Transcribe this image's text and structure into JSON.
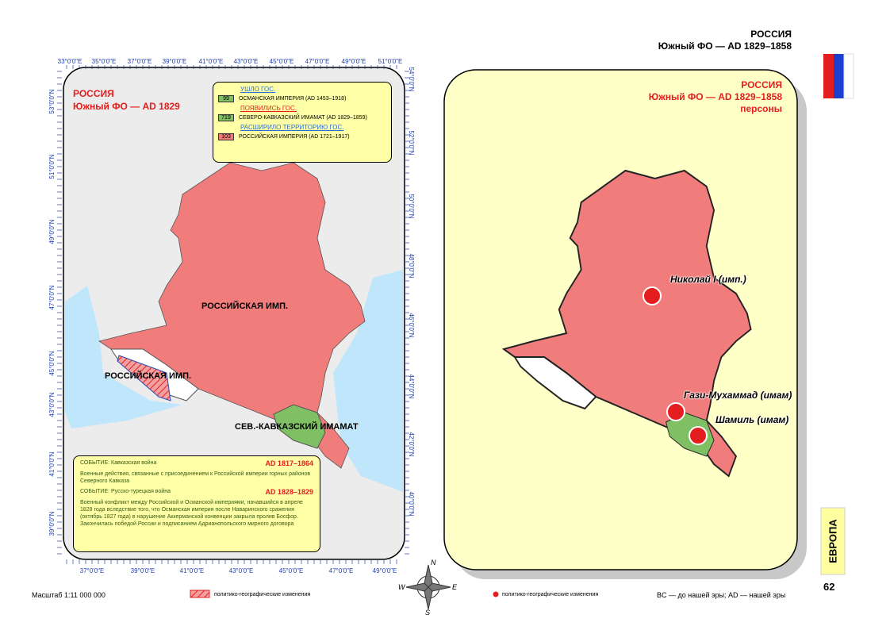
{
  "header": {
    "title": "РОССИЯ",
    "subtitle": "Южный ФО — AD 1829–1858"
  },
  "left_map": {
    "title": "РОССИЯ",
    "subtitle": "Южный ФО — AD 1829",
    "legend": {
      "left_heading": "УШЛО ГОС.",
      "left_items": [
        {
          "code": "99",
          "name": "ОСМАНСКАЯ ИМПЕРИЯ (AD 1453–1918)"
        }
      ],
      "appeared_heading": "ПОЯВИЛИСЬ ГОС.",
      "appeared_items": [
        {
          "code": "719",
          "name": "СЕВЕРО-КАВКАЗСКИЙ ИМАМАТ (AD 1829–1859)"
        }
      ],
      "expanded_heading": "РАСШИРИЛО ТЕРРИТОРИЮ ГОС.",
      "expanded_items": [
        {
          "code": "103",
          "name": "РОССИЙСКАЯ ИМПЕРИЯ (AD 1721–1917)"
        }
      ]
    },
    "labels": [
      "РОССИЙСКАЯ ИМП.",
      "РОССИЙСКАЯ ИМП.",
      "СЕВ.-КАВКАЗСКИЙ ИМАМАТ"
    ],
    "top_longitudes": [
      "33°0'0\"E",
      "35°0'0\"E",
      "37°0'0\"E",
      "39°0'0\"E",
      "41°0'0\"E",
      "43°0'0\"E",
      "45°0'0\"E",
      "47°0'0\"E",
      "49°0'0\"E",
      "51°0'0\"E"
    ],
    "bottom_longitudes": [
      "37°0'0\"E",
      "39°0'0\"E",
      "41°0'0\"E",
      "43°0'0\"E",
      "45°0'0\"E",
      "47°0'0\"E",
      "49°0'0\"E"
    ],
    "left_latitudes": [
      "53°0'0\"N",
      "51°0'0\"N",
      "49°0'0\"N",
      "47°0'0\"N",
      "45°0'0\"N",
      "43°0'0\"N",
      "41°0'0\"N",
      "39°0'0\"N"
    ],
    "right_latitudes": [
      "54°0'0\"N",
      "52°0'0\"N",
      "50°0'0\"N",
      "48°0'0\"N",
      "46°0'0\"N",
      "44°0'0\"N",
      "42°0'0\"N",
      "40°0'0\"N"
    ],
    "events": [
      {
        "title": "СОБЫТИЕ: Кавказская война",
        "date": "AD 1817–1864",
        "text": "Военные действия, связанные с присоединением к Российской империи горных районов Северного Кавказа"
      },
      {
        "title": "СОБЫТИЕ: Русско-турецкая война",
        "date": "AD 1828–1829",
        "text": "Военный конфликт между Российской и Османской империями, начавшийся в апреле 1828 года вследствие того, что Османская империя после Наваринского сражения (октябрь 1827 года) в нарушение Аккерманской конвенции закрыла пролив Босфор. Закончилась победой России и подписанием Адрианопольского мирного договора"
      }
    ]
  },
  "right_map": {
    "title": "РОССИЯ",
    "subtitle": "Южный ФО — AD 1829–1858",
    "caption": "персоны",
    "persons": [
      "Николай I (имп.)",
      "Гази-Мухаммад (имам)",
      "Шамиль (имам)"
    ]
  },
  "compass": [
    "N",
    "W",
    "E",
    "S"
  ],
  "footer": {
    "scale": "Масштаб 1:11 000 000",
    "hatch_legend": "политико-географические изменения",
    "dot_legend": "политико-географические изменения",
    "era_note": "BC — до нашей эры; AD — нашей эры",
    "page": "62",
    "section": "ЕВРОПА"
  }
}
